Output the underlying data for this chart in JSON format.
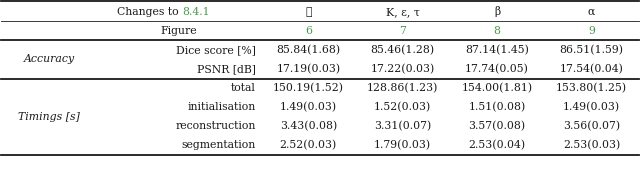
{
  "header_row1_label": "Changes to ",
  "header_row1_ref": "8.4.1",
  "header_row1_cols": [
    "∅",
    "K, ε, τ",
    "β",
    "α"
  ],
  "header_row2_label": "Figure",
  "header_row2_cols": [
    "6",
    "7",
    "8",
    "9"
  ],
  "section1_label": "Accuracy",
  "section1_rows": [
    [
      "Dice score [%]",
      "85.84(1.68)",
      "85.46(1.28)",
      "87.14(1.45)",
      "86.51(1.59)"
    ],
    [
      "PSNR [dB]",
      "17.19(0.03)",
      "17.22(0.03)",
      "17.74(0.05)",
      "17.54(0.04)"
    ]
  ],
  "section2_label": "Timings [s]",
  "section2_rows": [
    [
      "total",
      "150.19(1.52)",
      "128.86(1.23)",
      "154.00(1.81)",
      "153.80(1.25)"
    ],
    [
      "initialisation",
      "1.49(0.03)",
      "1.52(0.03)",
      "1.51(0.08)",
      "1.49(0.03)"
    ],
    [
      "reconstruction",
      "3.43(0.08)",
      "3.31(0.07)",
      "3.57(0.08)",
      "3.56(0.07)"
    ],
    [
      "segmentation",
      "2.52(0.03)",
      "1.79(0.03)",
      "2.53(0.04)",
      "2.53(0.03)"
    ]
  ],
  "green_color": "#4a9a4a",
  "black_color": "#1a1a1a",
  "bg_color": "#ffffff",
  "font_size": 7.8,
  "italic_font_size": 7.8
}
